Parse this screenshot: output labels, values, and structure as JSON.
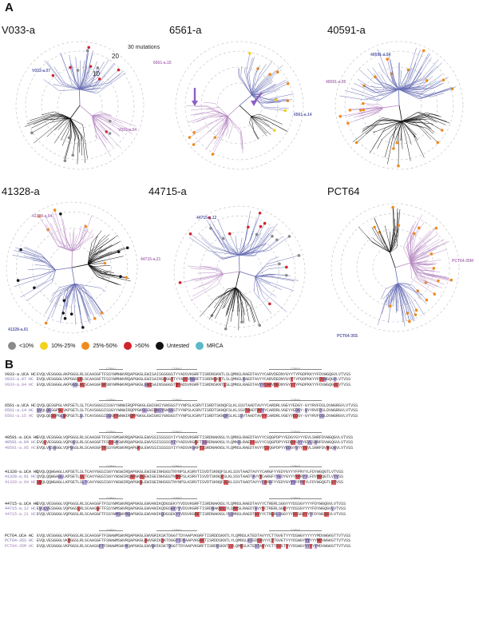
{
  "panel_a_label": "A",
  "panel_b_label": "B",
  "trees": [
    {
      "title": "V033-a",
      "labels": [
        "V033-a.07",
        "V033-a.04"
      ],
      "extra": [
        "30 mutations",
        "20",
        "10"
      ]
    },
    {
      "title": "6561-a",
      "labels": [
        "6561-a.15",
        "6561-a.14"
      ]
    },
    {
      "title": "40591-a",
      "labels": [
        "40591-a.04",
        "40591-a.05"
      ]
    },
    {
      "title": "41328-a",
      "labels": [
        "41328-a.04",
        "41328-a.01"
      ]
    },
    {
      "title": "44715-a",
      "labels": [
        "44715-a.12",
        "44715-a.21"
      ]
    },
    {
      "title": "PCT64",
      "labels": [
        "PCT64-35M",
        "PCT64-35S"
      ]
    }
  ],
  "legend": [
    {
      "label": "<10%",
      "color": "#8a8a8a"
    },
    {
      "label": "10%-25%",
      "color": "#f2d21b"
    },
    {
      "label": "25%-50%",
      "color": "#f08a1c"
    },
    {
      "label": ">50%",
      "color": "#d2232a"
    },
    {
      "label": "Untested",
      "color": "#111111"
    },
    {
      "label": "MRCA",
      "color": "#5bb9c8"
    }
  ],
  "colors": {
    "blue_branch": "#6a70b5",
    "purple_branch": "#b98cc4",
    "black_branch": "#111111",
    "ring": "#bdbdbd",
    "hl_red": "#d8262c",
    "hl_purple": "#a28bd0"
  },
  "alignment": [
    {
      "cdrs": [
        "CDRH1",
        "CDRH2",
        "CDRH3"
      ],
      "rows": [
        {
          "name": "V033-a.UCA HC",
          "seq": "EVQLVESGGGLAKPGGSLRLSCAASGFTFSSYWMHWVRQAPGKGLEWISAISGSGGSTYYADSVKGRFTISRDNSKNTLSLQMNSLRAEDTAVYYCARVDEDNYGYYTYPGDPKKYYFDVWGQGVLVTVSS"
        },
        {
          "name": "V033-a.07 HC",
          "seq": "EVQLVESGGGLVKPGGSLRLSCAASGFTFSSYWMHWVRQAPGKGLEWISAINSGGGTTYYADSVKGRFTISRDNSKNTLSLQMNSLRAEDTAVYYCARVDEDNYGYYTYPGDPKKYYFDVWGQGVLVTVSS"
        },
        {
          "name": "V033-a.04 HC",
          "seq": "EVQLVESGGGLAKPGGSLRLSCAASGFSFSNYWMHWVRQAPGKGLEWISAINSGGGSTYYADSVKGRFTISRDNSKNTLSLQMNSLRAEDTAVYYCARVDEDNYGYYTYPGDPKKYYFDVWGQGVLVTVSS"
        }
      ]
    },
    {
      "cdrs": [
        "CDRH1",
        "CDRH2",
        "CDRH3"
      ],
      "rows": [
        {
          "name": "6561-a.UCA HC",
          "seq": "QVQLQESGPGLVKPSETLSLTCAVSGGSISSGYYWNWIRQPPGKGLEWIGNIYGNSGSTYYNPSLKSRVTISRDTSKNQFSLKLSSVTAADTAVYYCARDRLVGEYYEDGY-GYYRVFDSLDVWGRGVLVTVSS"
        },
        {
          "name": "6561-a.14 HC",
          "seq": "QVQLQESGPGLVKPSETLSLTCAVSGGSISSGYYWNWIRQPPGKGLEWIGNIYGNSGSTYYNPSLKSRVTISRDTSKNQFSLKLSSVTAADTAVYYCARDRLVGEYYEDGY-GYYRVFDSLDVWGRGVLVTVSS"
        },
        {
          "name": "6561-a.15 HC",
          "seq": "QVQLQESGPGLVKPSETLSLTCAVSGGSISSGYYWNWIRQPPGKGLEWIGNIYGNSGSTYYNPSLKSRVTISRDTSKNQFSLKLSSVTAADTAVYYCARDRLVGEYYEDGY-GYYRVFDSLDVWGRGVLVTVSS"
        }
      ]
    },
    {
      "cdrs": [
        "CDRH1",
        "CDRH2",
        "CDRH3"
      ],
      "rows": [
        {
          "name": "40591-a.UCA HC",
          "seq": "EVQLVESGGGLVQPGGSLRLSCAASGFTFSSYGMSWVRQAPGKGLEWVSSISSSSSYIYYADSVKGRFTISRDNAKNSLYLQMNSLRAEDTAVYYCSQGPDPYYEDGYGYYYEVLSNRFDVWGQGVLVTVSS"
        },
        {
          "name": "40591-a.04 HC",
          "seq": "EVQLVESGGGLVQPGGSLRLSCAASGFTFSSYGMSWVRQAPGKGLEWVSSISSSSSYIYYADSVKGRFTISRDNAKNSLYLQMNSLRAEDTAVYYCSQGPDPYYEDGYGYYYEVLSNRFDVWGQGVLVTVSS"
        },
        {
          "name": "40591-a.05 HC",
          "seq": "EVQLVESGGGLVQPGGSLRLSCAASGFTFSSYGMSWVRQAPGKGLEWVSSISSSSSYIYYADSVKGRFTISRDNAKNSLYLQMNSLRAEDTAVYYCSQGPDPYYEDGYGYYYEVLSNRFDVWGQGVLVTVSS"
        }
      ]
    },
    {
      "cdrs": [
        "CDRH1",
        "CDRH2",
        "CDRH3"
      ],
      "rows": [
        {
          "name": "41328-a.UCA HC",
          "seq": "QVQLQQWGAGLLKPSETLSLTCAVYGGSISGYYWSWIRQAPGKGLEWIGEINHSGSTNYNPSLKSRVTISVDTSKNQFSLKLSSVTAADTAVYYCARGFYYEDYGYYYFPRYYLFDYWGQGTLVTVSS"
        },
        {
          "name": "41328-a.01 HC",
          "seq": "QVQLQQWGAGLLKPSETLSLTCAVYGGSISGYYWSWIRQAPGKGLEWIGEINHSGSTNYNPSLKSRVTISVDTSKNQFSLKLSSVTAADTAVYYCARGFYYEDYGYYYFPRYYLFDYWGQGTLVTVSS"
        },
        {
          "name": "41328-a.04 HC",
          "seq": "QVQLQQWGAGLLKPSETLSLTCAVYGGSISGYYWSWIRQAPGKGLEWIGEINHSGSTNYNPSLKSRVTISVDTSKNQFSLKLSSVTAADTAVYYCARGFYYEDYGYYYFPRYYLFDYWGQGTLVTVSS"
        }
      ]
    },
    {
      "cdrs": [
        "CDRH1",
        "CDRH2",
        "CDRH3"
      ],
      "rows": [
        {
          "name": "44715-a.UCA HC",
          "seq": "EVQLVESGGGLVQPGGSLRLSCAASGFTFSSYWMSWVRQAPGKGLEWVANIKQDGSEKYYVDSVKGRFTISRDNAKNSLYLQMNSLRAEDTAVYYCTRERLSGGYYYDSSGYYYYFDYWGQGVLVTVSS"
        },
        {
          "name": "44715-a.12 HC",
          "seq": "EVQLVESGGGLVQPGGSLRLSCAASGFTFSSYWMSWVRQAPGKGLEWVANIKQDGSEKYYVDSVKGRFTISRDNAKNSLYLQMNSLRAEDTAVYYCTRERLSGGYYYDSSGYYYYFDYWGQGVLVTVSS"
        },
        {
          "name": "44715-a.21 HC",
          "seq": "EVQLVESGGGLVQPGGSLRLSCAASGFTFSSYWMSWVRQAPGKGLEWVANIKQDGSEKYYVDSVKGRFTISRDNAKNSLYLQMNSLRAEDTAVYYCTRERLSGGYYYDSSGYYYYFDYWGQGVLVTVSS"
        }
      ]
    },
    {
      "cdrs": [
        "CDRH1",
        "CDRH2",
        "CDRH3"
      ],
      "rows": [
        {
          "name": "PCT64.UCA HC",
          "seq": "EVQLVESGGGLVKPGGSLRLSCAASGFTFSNAWMSWVRQAPGKGLEWVGRIKSKTDGGTTDYAAPVKGRFTISRDDSKNTLYLQMNSLKTEDTAVYYCTTGVETYYYDSWGYYYYYYMDVWGKGTTVTVSS"
        },
        {
          "name": "PCT64-35S HC",
          "seq": "EVQLVESGGGLVKPGGSLRLSCAASGFTFSNAWMSWVRQAPGKGLEWVGRIKSKTDGGTTDYAAPVKGRFTISRDDSKNTLYLQMNSLKTEDTAVYYCTTGVETYYYDSWGYYYYYYMDVWGKGTTVTVSS"
        },
        {
          "name": "PCT64-35M HC",
          "seq": "EVQLVESGGGLVKPGGSLRLSCAASGFTFSNAWMSWVRQAPGKGLEWVGRIKSKTDGGTTDYAAPVKGRFTISRDDSKNTLYLQMNSLKTEDTAVYYCTTGVETYYYDSWGYYYYYYMDVWGKGTTVTVSS"
        }
      ]
    }
  ]
}
